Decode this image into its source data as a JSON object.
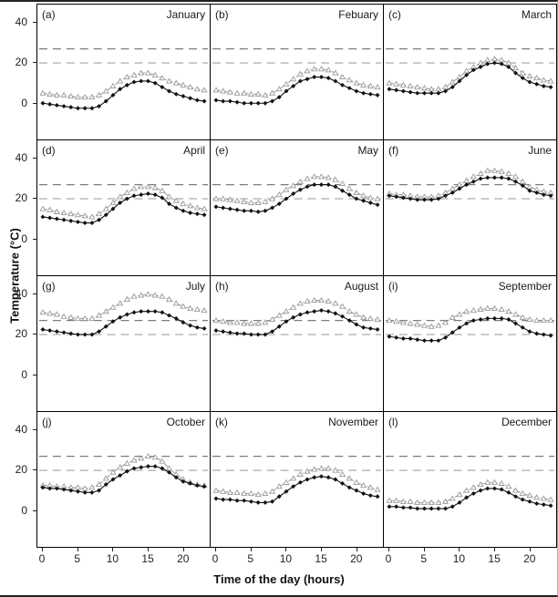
{
  "figure": {
    "ylabel": "Temperature (°C)",
    "xlabel": "Time of the day (hours)",
    "y_ticks": [
      40,
      20,
      0
    ],
    "x_ticks": [
      0,
      5,
      10,
      15,
      20
    ],
    "ylim": [
      -18,
      49
    ],
    "xlim": [
      0,
      23
    ],
    "grid": "off",
    "legend": "none",
    "colors": {
      "diamond_series": "#111111",
      "triangle_series": "#9a9a9a",
      "ref_line_upper": "#7d7d7d",
      "ref_line_lower": "#b3b3b3",
      "panel_border": "#000000"
    }
  },
  "chart_data": {
    "type": "line",
    "layout": "3x4 small-multiple panel grid, one panel per month",
    "x": [
      0,
      1,
      2,
      3,
      4,
      5,
      6,
      7,
      8,
      9,
      10,
      11,
      12,
      13,
      14,
      15,
      16,
      17,
      18,
      19,
      20,
      21,
      22,
      23
    ],
    "ref_lines": [
      {
        "value": 27,
        "style": "dashed"
      },
      {
        "value": 20,
        "style": "dashed"
      }
    ],
    "panels": [
      {
        "label": "(a)",
        "month": "January",
        "series": [
          {
            "name": "open-triangle-series",
            "marker": "open-triangle",
            "values": [
              5,
              4.5,
              4,
              4,
              3.5,
              3,
              3,
              3,
              4,
              6,
              8.5,
              11,
              13,
              14,
              15,
              15,
              14,
              12.5,
              11,
              10,
              9,
              8,
              7,
              6.5
            ]
          },
          {
            "name": "filled-diamond-series",
            "marker": "filled-diamond",
            "values": [
              0,
              -0.5,
              -1,
              -1.5,
              -2,
              -2.5,
              -2.5,
              -2.5,
              -1.5,
              1,
              4,
              7,
              9,
              10.5,
              11,
              11,
              10,
              8,
              6,
              4.5,
              3.5,
              2.5,
              1.5,
              1
            ]
          }
        ]
      },
      {
        "label": "(b)",
        "month": "Febuary",
        "series": [
          {
            "name": "open-triangle-series",
            "marker": "open-triangle",
            "values": [
              6.5,
              6,
              5.5,
              5,
              5,
              4.5,
              4.5,
              4,
              5,
              7,
              9.5,
              12,
              14.5,
              16,
              17,
              17,
              16.5,
              15,
              13,
              11.5,
              10,
              9,
              8.5,
              8
            ]
          },
          {
            "name": "filled-diamond-series",
            "marker": "filled-diamond",
            "values": [
              1.5,
              1,
              1,
              0.5,
              0,
              0,
              0,
              0,
              1,
              3,
              6,
              8.5,
              11,
              12,
              13,
              13,
              12.5,
              11,
              9,
              7.5,
              6,
              5,
              4.5,
              4
            ]
          }
        ]
      },
      {
        "label": "(c)",
        "month": "March",
        "series": [
          {
            "name": "open-triangle-series",
            "marker": "open-triangle",
            "values": [
              10,
              9.5,
              9,
              8.5,
              8,
              7.5,
              7,
              7,
              8,
              10.5,
              13,
              16,
              18,
              20,
              21.5,
              22,
              21.5,
              20,
              17.5,
              15,
              13.5,
              12.5,
              11.5,
              11
            ]
          },
          {
            "name": "filled-diamond-series",
            "marker": "filled-diamond",
            "values": [
              7,
              6.5,
              6,
              5.5,
              5,
              5,
              5,
              5,
              6,
              8,
              11,
              14,
              16.5,
              18,
              19.5,
              20,
              19.5,
              18,
              15,
              12.5,
              10.5,
              9.5,
              8.5,
              8
            ]
          }
        ]
      },
      {
        "label": "(d)",
        "month": "April",
        "series": [
          {
            "name": "open-triangle-series",
            "marker": "open-triangle",
            "values": [
              15,
              14.5,
              13.5,
              13,
              12.5,
              12,
              11.5,
              11,
              12.5,
              15,
              18,
              21,
              23,
              25,
              26,
              26,
              25.5,
              24,
              21,
              19,
              17.5,
              16.5,
              15.5,
              15
            ]
          },
          {
            "name": "filled-diamond-series",
            "marker": "filled-diamond",
            "values": [
              11,
              10.5,
              10,
              9.5,
              9,
              8.5,
              8,
              8,
              9.5,
              12,
              15,
              18,
              20,
              21.5,
              22,
              22.5,
              22,
              20.5,
              17.5,
              15.5,
              14,
              13,
              12.5,
              12
            ]
          }
        ]
      },
      {
        "label": "(e)",
        "month": "May",
        "series": [
          {
            "name": "open-triangle-series",
            "marker": "open-triangle",
            "values": [
              20,
              20,
              19.5,
              19,
              18.5,
              18,
              18,
              18.5,
              20,
              22,
              24.5,
              26.5,
              28.5,
              30,
              31,
              31,
              30.5,
              29.5,
              27.5,
              25,
              23,
              21.5,
              20.5,
              20
            ]
          },
          {
            "name": "filled-diamond-series",
            "marker": "filled-diamond",
            "values": [
              16,
              15.5,
              15,
              14.5,
              14,
              14,
              13.5,
              14,
              15.5,
              17.5,
              20,
              22.5,
              24.5,
              26,
              27,
              27,
              27,
              26,
              24,
              22,
              20,
              19,
              18,
              17
            ]
          }
        ]
      },
      {
        "label": "(f)",
        "month": "June",
        "series": [
          {
            "name": "open-triangle-series",
            "marker": "open-triangle",
            "values": [
              22.5,
              22,
              22,
              21.5,
              21,
              21,
              21,
              21.5,
              23,
              25,
              27,
              29,
              31,
              32.5,
              34,
              34,
              33.5,
              32.5,
              31,
              28.5,
              26,
              24.5,
              23.5,
              23
            ]
          },
          {
            "name": "filled-diamond-series",
            "marker": "filled-diamond",
            "values": [
              21.5,
              21,
              20.5,
              20,
              19.5,
              19.5,
              19.5,
              20,
              21.5,
              23,
              25,
              27,
              28.5,
              30,
              30.5,
              30.5,
              30.5,
              30,
              28.5,
              26.5,
              24,
              23,
              22,
              21.5
            ]
          }
        ]
      },
      {
        "label": "(g)",
        "month": "July",
        "series": [
          {
            "name": "open-triangle-series",
            "marker": "open-triangle",
            "values": [
              31,
              30.5,
              30,
              29,
              28.5,
              28,
              28,
              28,
              29.5,
              31.5,
              33.5,
              35.5,
              37.5,
              39,
              39.5,
              40,
              39.5,
              39,
              37.5,
              35.5,
              34,
              33,
              32.5,
              32
            ]
          },
          {
            "name": "filled-diamond-series",
            "marker": "filled-diamond",
            "values": [
              22.5,
              22,
              21.5,
              21,
              20.5,
              20,
              20,
              20,
              21.5,
              24,
              26.5,
              28.5,
              30,
              31,
              31.5,
              31.5,
              31.5,
              31,
              29.5,
              28,
              26,
              24.5,
              23.5,
              23
            ]
          }
        ]
      },
      {
        "label": "(h)",
        "month": "August",
        "series": [
          {
            "name": "open-triangle-series",
            "marker": "open-triangle",
            "values": [
              27,
              26.5,
              26,
              26,
              25.5,
              25.5,
              25.5,
              26,
              27.5,
              29.5,
              31.5,
              33.5,
              35.5,
              36.5,
              37,
              37,
              36.5,
              35.5,
              34,
              31.5,
              30,
              28.5,
              28,
              27.5
            ]
          },
          {
            "name": "filled-diamond-series",
            "marker": "filled-diamond",
            "values": [
              22,
              21.5,
              21,
              20.5,
              20.5,
              20,
              20,
              20,
              21.5,
              24,
              26.5,
              28.5,
              30,
              31,
              31.5,
              32,
              31.5,
              30.5,
              29,
              27,
              25,
              23.5,
              23,
              22.5
            ]
          }
        ]
      },
      {
        "label": "(i)",
        "month": "September",
        "series": [
          {
            "name": "open-triangle-series",
            "marker": "open-triangle",
            "values": [
              27,
              26.5,
              26,
              25.5,
              25,
              24.5,
              24,
              24.5,
              26,
              28.5,
              30,
              31.5,
              32,
              32.5,
              33,
              33,
              32.5,
              31.5,
              30,
              28.5,
              27.5,
              27,
              27,
              27
            ]
          },
          {
            "name": "filled-diamond-series",
            "marker": "filled-diamond",
            "values": [
              19,
              18.5,
              18,
              18,
              17.5,
              17,
              17,
              17,
              18.5,
              21,
              23.5,
              25.5,
              27,
              27.5,
              28,
              28,
              28,
              27.5,
              25.5,
              23.5,
              21.5,
              20.5,
              20,
              19.5
            ]
          }
        ]
      },
      {
        "label": "(j)",
        "month": "October",
        "series": [
          {
            "name": "open-triangle-series",
            "marker": "open-triangle",
            "values": [
              12.5,
              12.5,
              12,
              12,
              11.5,
              11.5,
              11,
              11.5,
              13,
              16,
              19,
              21.5,
              23.5,
              25,
              26,
              27,
              26.5,
              24.5,
              21,
              18,
              15.5,
              14,
              13,
              12.5
            ]
          },
          {
            "name": "filled-diamond-series",
            "marker": "filled-diamond",
            "values": [
              11.5,
              11,
              11,
              10.5,
              10,
              9.5,
              9,
              9,
              10,
              13,
              15.5,
              17.5,
              19.5,
              21,
              21.5,
              22,
              22,
              21,
              19,
              16.5,
              14.5,
              13.5,
              12.5,
              12
            ]
          }
        ]
      },
      {
        "label": "(k)",
        "month": "November",
        "series": [
          {
            "name": "open-triangle-series",
            "marker": "open-triangle",
            "values": [
              10,
              9.5,
              9,
              9,
              8.5,
              8.5,
              8,
              8.5,
              9.5,
              12,
              14,
              16,
              18,
              19.5,
              20.5,
              21,
              21,
              20,
              18,
              16,
              14,
              12.5,
              11.5,
              10.5
            ]
          },
          {
            "name": "filled-diamond-series",
            "marker": "filled-diamond",
            "values": [
              6,
              5.5,
              5.5,
              5,
              5,
              4.5,
              4,
              4,
              4.5,
              7,
              9.5,
              12,
              14,
              15.5,
              16.5,
              17,
              16.5,
              15.5,
              13.5,
              11.5,
              10,
              8.5,
              7.5,
              7
            ]
          }
        ]
      },
      {
        "label": "(l)",
        "month": "December",
        "series": [
          {
            "name": "open-triangle-series",
            "marker": "open-triangle",
            "values": [
              5,
              5,
              4.5,
              4.5,
              4,
              4,
              4,
              4,
              4.5,
              6,
              8,
              10,
              11.5,
              13,
              14,
              14,
              13.5,
              12,
              10,
              8.5,
              7.5,
              6.5,
              6,
              5.5
            ]
          },
          {
            "name": "filled-diamond-series",
            "marker": "filled-diamond",
            "values": [
              2,
              2,
              1.5,
              1.5,
              1,
              1,
              1,
              1,
              1,
              2,
              4,
              6.5,
              8.5,
              10,
              11,
              11,
              10.5,
              9,
              7,
              5.5,
              4.5,
              3.5,
              3,
              2.5
            ]
          }
        ]
      }
    ]
  }
}
